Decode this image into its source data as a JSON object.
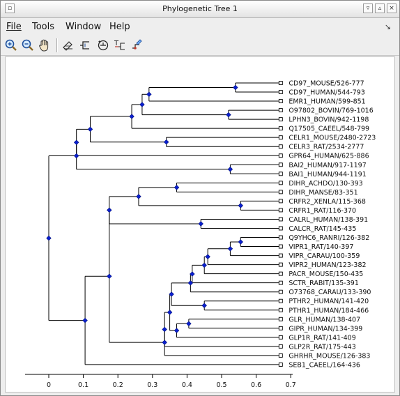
{
  "window": {
    "title": "Phylogenetic Tree 1"
  },
  "menu": {
    "file": "File",
    "tools": "Tools",
    "window": "Window",
    "help": "Help"
  },
  "toolbar": {
    "icons": [
      "zoom-in-icon",
      "zoom-out-icon",
      "pan-hand-icon",
      "edit-tree-icon",
      "show-rectangular-icon",
      "rotate-icon",
      "text-label-icon",
      "highlight-icon"
    ]
  },
  "chart_data": {
    "type": "tree",
    "xlim": [
      -0.065,
      0.7
    ],
    "ticks": [
      "0",
      "0.1",
      "0.2",
      "0.3",
      "0.4",
      "0.5",
      "0.6",
      "0.7"
    ],
    "leaves": [
      "CD97_MOUSE/526-777",
      "CD97_HUMAN/544-793",
      "EMR1_HUMAN/599-851",
      "O97802_BOVIN/769-1016",
      "LPHN3_BOVIN/942-1198",
      "Q17505_CAEEL/548-799",
      "CELR1_MOUSE/2480-2723",
      "CELR3_RAT/2534-2777",
      "GPR64_HUMAN/625-886",
      "BAI2_HUMAN/917-1197",
      "BAI1_HUMAN/944-1191",
      "DIHR_ACHDO/130-393",
      "DIHR_MANSE/83-351",
      "CRFR2_XENLA/115-368",
      "CRFR1_RAT/116-370",
      "CALRL_HUMAN/138-391",
      "CALCR_RAT/145-435",
      "Q9YHC6_RANRI/126-382",
      "VIPR1_RAT/140-397",
      "VIPR_CARAU/100-359",
      "VIPR2_HUMAN/123-382",
      "PACR_MOUSE/150-435",
      "SCTR_RABIT/135-391",
      "O73768_CARAU/133-390",
      "PTHR2_HUMAN/141-420",
      "PTHR1_HUMAN/184-466",
      "GLR_HUMAN/138-407",
      "GIPR_HUMAN/134-399",
      "GLP1R_RAT/141-409",
      "GLP2R_RAT/175-443",
      "GHRHR_MOUSE/126-383",
      "SEB1_CAEEL/164-436"
    ],
    "leaf_x": 0.67,
    "nodes": [
      {
        "id": "n_cd97",
        "x": 0.54,
        "children": [
          "L0",
          "L1"
        ]
      },
      {
        "id": "n_emr",
        "x": 0.29,
        "children": [
          "n_cd97",
          "L2"
        ]
      },
      {
        "id": "n_lphn",
        "x": 0.52,
        "children": [
          "L3",
          "L4"
        ]
      },
      {
        "id": "n_a",
        "x": 0.27,
        "children": [
          "n_emr",
          "n_lphn"
        ]
      },
      {
        "id": "n_b",
        "x": 0.24,
        "children": [
          "n_a",
          "L5"
        ]
      },
      {
        "id": "n_celr",
        "x": 0.34,
        "children": [
          "L6",
          "L7"
        ]
      },
      {
        "id": "n_c",
        "x": 0.12,
        "children": [
          "n_b",
          "n_celr"
        ]
      },
      {
        "id": "n_d",
        "x": 0.08,
        "children": [
          "n_c",
          "L8"
        ]
      },
      {
        "id": "n_bai",
        "x": 0.525,
        "children": [
          "L9",
          "L10"
        ]
      },
      {
        "id": "n_e",
        "x": 0.08,
        "children": [
          "n_d",
          "n_bai"
        ]
      },
      {
        "id": "n_dihr",
        "x": 0.37,
        "children": [
          "L11",
          "L12"
        ]
      },
      {
        "id": "n_crfr",
        "x": 0.555,
        "children": [
          "L13",
          "L14"
        ]
      },
      {
        "id": "n_f",
        "x": 0.26,
        "children": [
          "n_dihr",
          "n_crfr"
        ]
      },
      {
        "id": "n_calc",
        "x": 0.44,
        "children": [
          "L15",
          "L16"
        ]
      },
      {
        "id": "n_g",
        "x": 0.175,
        "children": [
          "n_f",
          "n_calc"
        ]
      },
      {
        "id": "n_q9",
        "x": 0.555,
        "children": [
          "L17",
          "L18"
        ]
      },
      {
        "id": "n_h",
        "x": 0.525,
        "children": [
          "n_q9",
          "L19"
        ]
      },
      {
        "id": "n_i",
        "x": 0.46,
        "children": [
          "n_h",
          "L20"
        ]
      },
      {
        "id": "n_j",
        "x": 0.45,
        "children": [
          "n_i",
          "L21"
        ]
      },
      {
        "id": "n_k",
        "x": 0.415,
        "children": [
          "n_j",
          "L22"
        ]
      },
      {
        "id": "n_l",
        "x": 0.41,
        "children": [
          "n_k",
          "L23"
        ]
      },
      {
        "id": "n_pthr",
        "x": 0.45,
        "children": [
          "L24",
          "L25"
        ]
      },
      {
        "id": "n_m",
        "x": 0.355,
        "children": [
          "n_l",
          "n_pthr"
        ]
      },
      {
        "id": "n_gip",
        "x": 0.405,
        "children": [
          "L26",
          "L27"
        ]
      },
      {
        "id": "n_n",
        "x": 0.37,
        "children": [
          "n_gip",
          "L28"
        ]
      },
      {
        "id": "n_o",
        "x": 0.35,
        "children": [
          "n_m",
          "n_n"
        ]
      },
      {
        "id": "n_p",
        "x": 0.335,
        "children": [
          "n_o",
          "L29"
        ]
      },
      {
        "id": "n_q",
        "x": 0.335,
        "children": [
          "n_p",
          "L30"
        ]
      },
      {
        "id": "n_r",
        "x": 0.175,
        "children": [
          "n_g",
          "n_q"
        ]
      },
      {
        "id": "n_s",
        "x": 0.105,
        "children": [
          "n_r",
          "L31"
        ]
      },
      {
        "id": "root",
        "x": 0.0,
        "children": [
          "n_e",
          "n_s"
        ]
      }
    ]
  }
}
